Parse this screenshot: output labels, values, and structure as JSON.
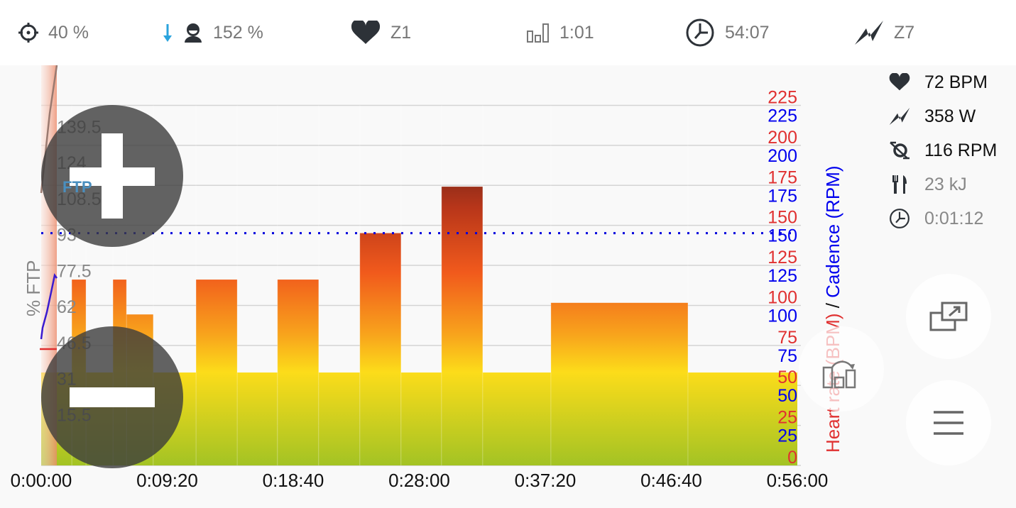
{
  "topbar": {
    "items": [
      {
        "icon": "crosshair-icon",
        "value": "40 %"
      },
      {
        "icon": "rider-icon",
        "value": "152 %",
        "trend_icon": "arrow-down-icon",
        "trend_color": "#2aa3dd"
      },
      {
        "icon": "heart-icon",
        "value": "Z1"
      },
      {
        "icon": "interval-bars-icon",
        "value": "1:01"
      },
      {
        "icon": "clock-icon",
        "value": "54:07"
      },
      {
        "icon": "power-bolt-icon",
        "value": "Z7"
      }
    ]
  },
  "stats": [
    {
      "icon": "heart-icon",
      "value": "72 BPM"
    },
    {
      "icon": "power-bolt-icon",
      "value": "358 W"
    },
    {
      "icon": "cadence-icon",
      "value": "116 RPM"
    },
    {
      "icon": "fork-knife-icon",
      "value": "23 kJ"
    },
    {
      "icon": "clock-icon",
      "value": "0:01:12"
    }
  ],
  "chart_data": {
    "type": "bar",
    "ylabel": "% FTP",
    "ylabel_right_hr": "Heart rate (BPM)",
    "ylabel_right_sep": " / ",
    "ylabel_right_cadence": "Cadence (RPM)",
    "ftp_label": "FTP",
    "ftp_value": 100,
    "ylim": [
      0,
      155
    ],
    "xlim_seconds": [
      0,
      3360
    ],
    "y_ticks": [
      "15.5",
      "31",
      "46.5",
      "62",
      "77.5",
      "93",
      "108.5",
      "124",
      "139.5"
    ],
    "hr_ticks": [
      "0",
      "25",
      "50",
      "75",
      "100",
      "125",
      "150",
      "175",
      "200",
      "225"
    ],
    "cadence_ticks": [
      "25",
      "50",
      "75",
      "100",
      "125",
      "150",
      "175",
      "200",
      "225"
    ],
    "x_ticks": [
      "0:00:00",
      "0:09:20",
      "0:18:40",
      "0:28:00",
      "0:37:20",
      "0:46:40",
      "0:56:00"
    ],
    "segments": [
      {
        "start": 0,
        "end": 136,
        "ftp": 40
      },
      {
        "start": 136,
        "end": 199,
        "ftp": 80
      },
      {
        "start": 199,
        "end": 319,
        "ftp": 40
      },
      {
        "start": 319,
        "end": 379,
        "ftp": 80
      },
      {
        "start": 379,
        "end": 498,
        "ftp": 65
      },
      {
        "start": 498,
        "end": 688,
        "ftp": 40
      },
      {
        "start": 688,
        "end": 871,
        "ftp": 80
      },
      {
        "start": 871,
        "end": 1050,
        "ftp": 40
      },
      {
        "start": 1050,
        "end": 1233,
        "ftp": 80
      },
      {
        "start": 1233,
        "end": 1416,
        "ftp": 40
      },
      {
        "start": 1416,
        "end": 1599,
        "ftp": 100
      },
      {
        "start": 1599,
        "end": 1779,
        "ftp": 40
      },
      {
        "start": 1779,
        "end": 1962,
        "ftp": 120
      },
      {
        "start": 1962,
        "end": 2265,
        "ftp": 40
      },
      {
        "start": 2265,
        "end": 2874,
        "ftp": 70
      },
      {
        "start": 2874,
        "end": 3360,
        "ftp": 40
      }
    ],
    "colors": {
      "hr": "#e03030",
      "cadence": "#0000ee",
      "ftp_line": "#0000dd"
    }
  },
  "controls": {
    "zoom_in": "zoom-in",
    "zoom_out": "zoom-out"
  }
}
